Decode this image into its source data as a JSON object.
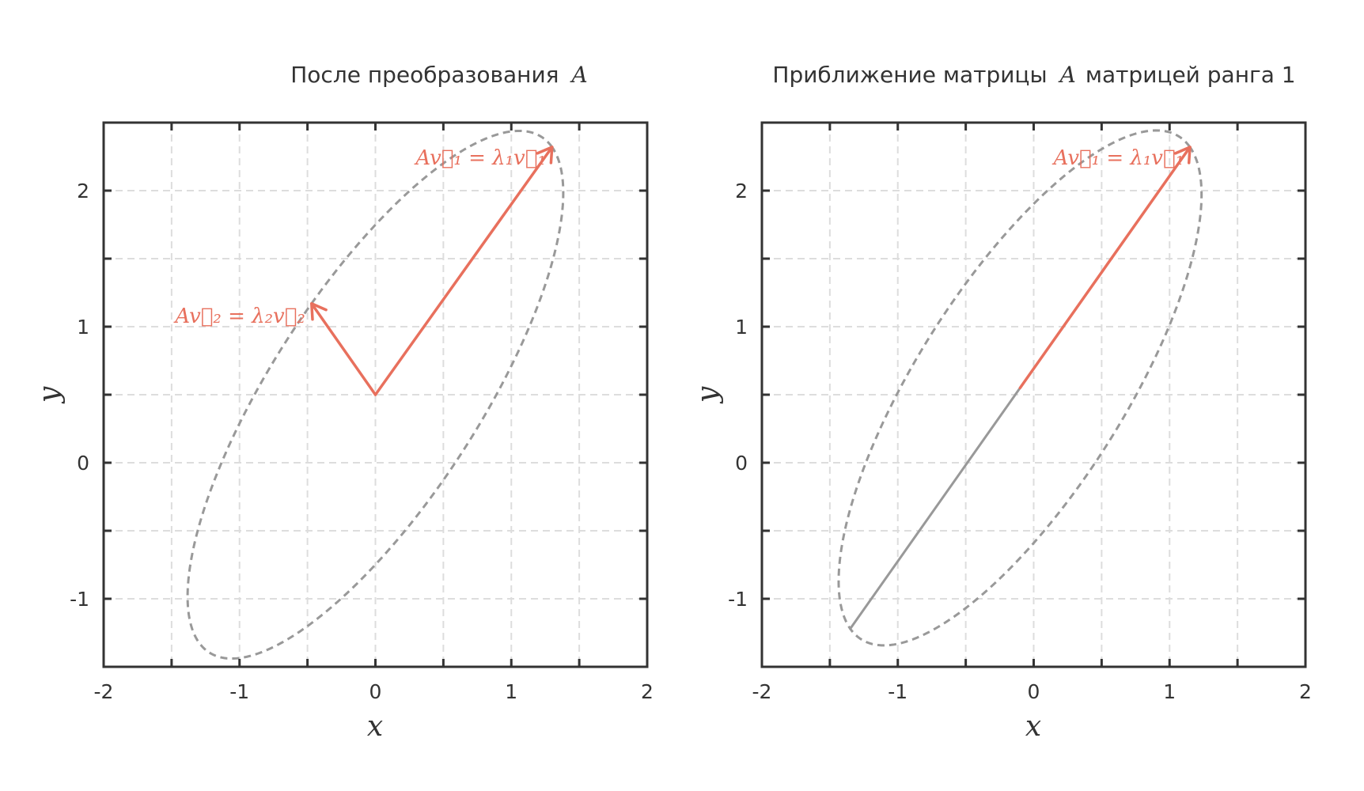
{
  "chart_data": [
    {
      "type": "line",
      "title": "После преобразования",
      "title_math": "A",
      "xlabel": "x",
      "ylabel": "y",
      "xlim": [
        -2,
        2
      ],
      "ylim": [
        -1.5,
        2.5
      ],
      "xticks": [
        -2,
        -1,
        0,
        1,
        2
      ],
      "yticks": [
        -1,
        0,
        1,
        2
      ],
      "xtick_labels": [
        "-2",
        "-1",
        "0",
        "1",
        "2"
      ],
      "ytick_labels": [
        "-1",
        "0",
        "1",
        "2"
      ],
      "grid_step": 0.5,
      "grid": true,
      "ellipse": {
        "center": [
          0,
          0.5
        ],
        "eigvec1": [
          1.3,
          1.82
        ],
        "eigvec2": [
          -0.47,
          0.67
        ]
      },
      "vectors": [
        {
          "from": [
            0,
            0.5
          ],
          "to": [
            1.3,
            2.32
          ],
          "label": "Av⃗₁ = λ₁v⃗₁"
        },
        {
          "from": [
            0,
            0.5
          ],
          "to": [
            -0.47,
            1.17
          ],
          "label": "Av⃗₂ = λ₂v⃗₂"
        }
      ],
      "colors": {
        "vector": "#e8705d",
        "ellipse": "#999999",
        "grid": "#dddddd",
        "axes": "#333333"
      }
    },
    {
      "type": "line",
      "title": "Приближение матрицы",
      "title_math": "A",
      "title_suffix": "матрицей ранга 1",
      "xlabel": "x",
      "ylabel": "y",
      "xlim": [
        -2,
        2
      ],
      "ylim": [
        -1.5,
        2.5
      ],
      "xticks": [
        -2,
        -1,
        0,
        1,
        2
      ],
      "yticks": [
        -1,
        0,
        1,
        2
      ],
      "xtick_labels": [
        "-2",
        "-1",
        "0",
        "1",
        "2"
      ],
      "ytick_labels": [
        "-1",
        "0",
        "1",
        "2"
      ],
      "grid_step": 0.5,
      "grid": true,
      "ellipse": {
        "center": [
          -0.1,
          0.55
        ],
        "eigvec1": [
          1.25,
          1.77
        ],
        "eigvec2": [
          -0.47,
          0.67
        ]
      },
      "segment": {
        "from": [
          -1.35,
          -1.22
        ],
        "to": [
          -0.1,
          0.55
        ]
      },
      "vectors": [
        {
          "from": [
            -0.1,
            0.55
          ],
          "to": [
            1.15,
            2.32
          ],
          "label": "Av⃗₁ = λ₁v⃗₁"
        }
      ],
      "colors": {
        "vector": "#e8705d",
        "segment": "#999999",
        "ellipse": "#999999",
        "grid": "#dddddd",
        "axes": "#333333"
      }
    }
  ]
}
